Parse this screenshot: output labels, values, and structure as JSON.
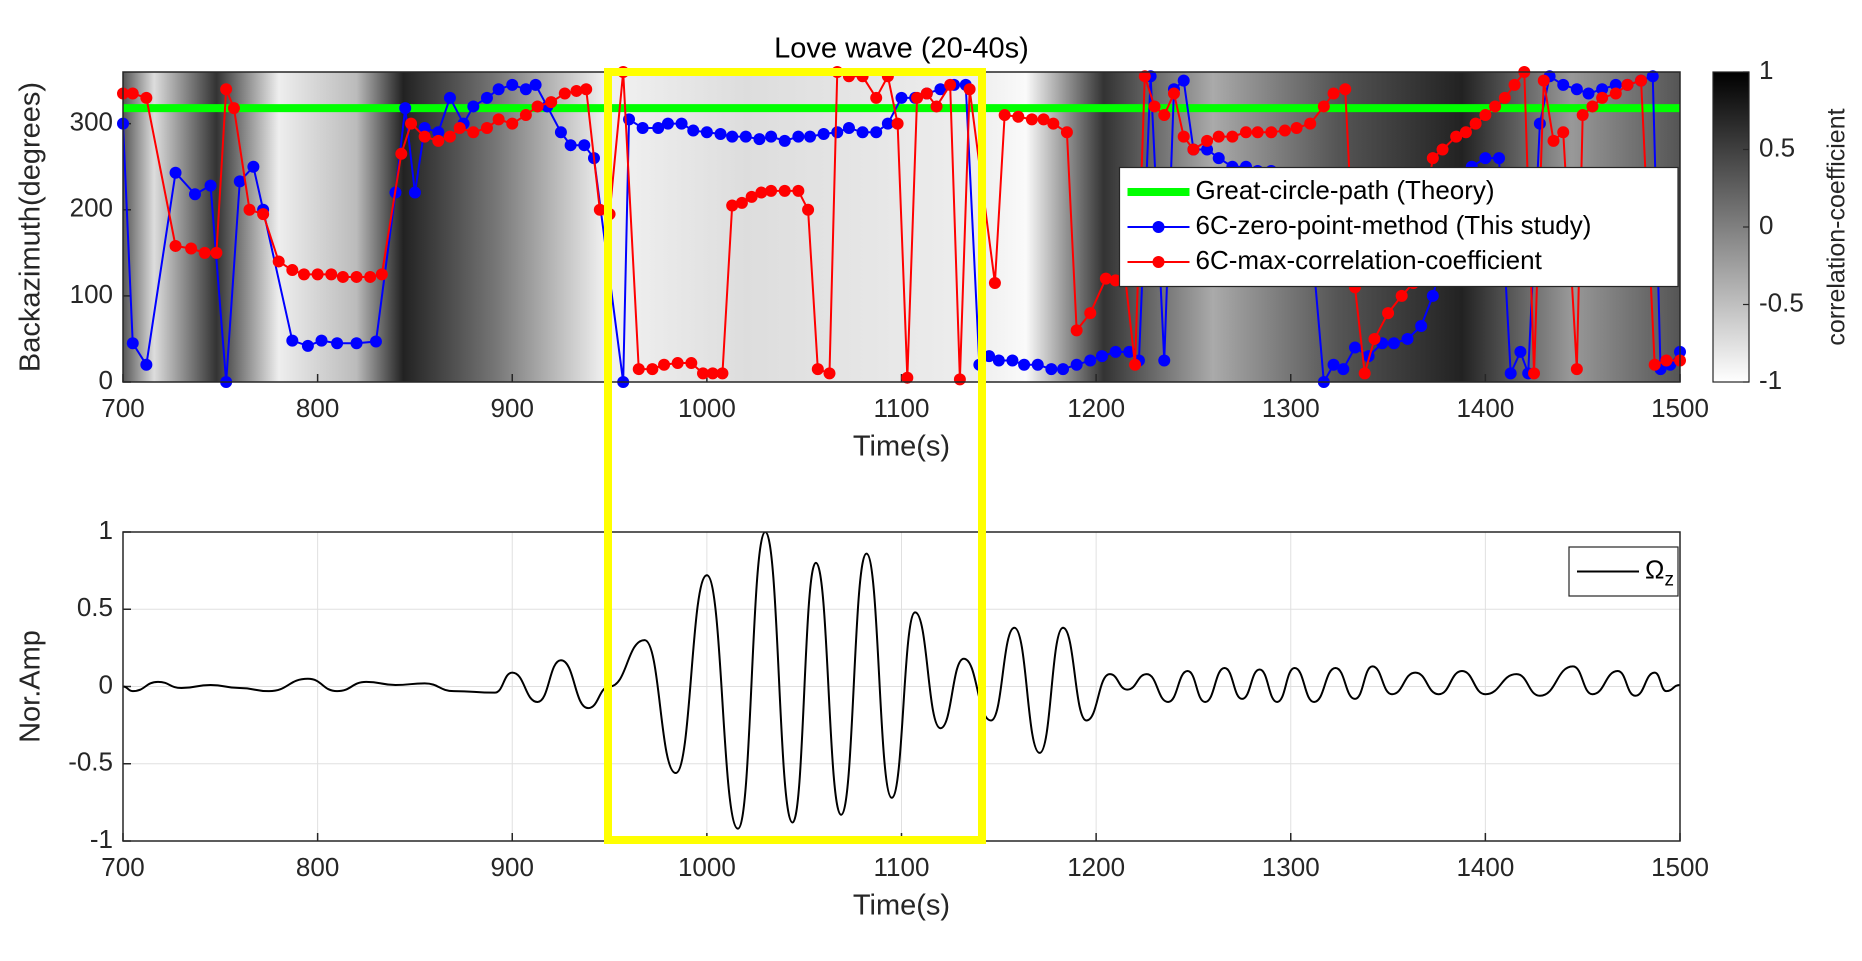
{
  "chart_data": [
    {
      "type": "line",
      "title": "Love wave (20-40s)",
      "x_label": "Time(s)",
      "y_label": "Backazimuth(degrees)",
      "xlim": [
        700,
        1500
      ],
      "xticks": [
        700,
        800,
        900,
        1000,
        1100,
        1200,
        1300,
        1400,
        1500
      ],
      "ylim": [
        0,
        360
      ],
      "yticks": [
        0,
        100,
        200,
        300
      ],
      "grid": false,
      "legend": "east",
      "markers": true,
      "colorbar": {
        "label": "correlation-coefficient",
        "lim": [
          -1,
          1
        ],
        "ticks": [
          -1,
          -0.5,
          0,
          0.5,
          1
        ]
      },
      "series": [
        {
          "name": "Great-circle-path (Theory)",
          "color": "#00ff00",
          "markers": false,
          "width": 8,
          "x": [
            700,
            1500
          ],
          "values": [
            318,
            318
          ]
        },
        {
          "name": "6C-zero-point-method (This study)",
          "color": "#0000ff",
          "width": 2,
          "x": [
            700,
            705,
            712,
            727,
            737,
            745,
            753,
            760,
            767,
            772,
            787,
            795,
            802,
            810,
            820,
            830,
            840,
            845,
            850,
            855,
            862,
            868,
            875,
            880,
            887,
            893,
            900,
            907,
            912,
            918,
            925,
            930,
            937,
            942,
            957,
            960,
            967,
            975,
            980,
            987,
            993,
            1000,
            1007,
            1013,
            1020,
            1027,
            1033,
            1040,
            1047,
            1053,
            1060,
            1067,
            1073,
            1080,
            1087,
            1093,
            1100,
            1107,
            1113,
            1120,
            1127,
            1133,
            1140,
            1145,
            1150,
            1157,
            1163,
            1170,
            1177,
            1183,
            1190,
            1197,
            1203,
            1210,
            1217,
            1222,
            1228,
            1235,
            1240,
            1245,
            1250,
            1257,
            1263,
            1270,
            1277,
            1283,
            1290,
            1297,
            1303,
            1308,
            1317,
            1322,
            1327,
            1333,
            1340,
            1347,
            1353,
            1360,
            1367,
            1373,
            1380,
            1387,
            1393,
            1400,
            1407,
            1413,
            1418,
            1422,
            1428,
            1433,
            1440,
            1447,
            1453,
            1460,
            1467,
            1473,
            1480,
            1486,
            1490,
            1495,
            1500
          ],
          "values": [
            300,
            45,
            20,
            243,
            218,
            228,
            0,
            233,
            250,
            200,
            48,
            42,
            48,
            45,
            45,
            47,
            220,
            318,
            220,
            295,
            290,
            330,
            300,
            320,
            330,
            340,
            345,
            340,
            345,
            320,
            290,
            275,
            275,
            260,
            0,
            305,
            295,
            295,
            300,
            300,
            292,
            290,
            288,
            285,
            285,
            282,
            285,
            280,
            285,
            285,
            288,
            290,
            295,
            290,
            290,
            300,
            330,
            330,
            335,
            340,
            345,
            345,
            20,
            30,
            25,
            25,
            20,
            20,
            15,
            15,
            20,
            25,
            30,
            35,
            35,
            25,
            355,
            25,
            340,
            350,
            270,
            270,
            260,
            250,
            250,
            245,
            245,
            240,
            235,
            235,
            0,
            20,
            15,
            40,
            30,
            45,
            45,
            50,
            65,
            100,
            160,
            240,
            250,
            260,
            260,
            10,
            35,
            10,
            300,
            355,
            345,
            340,
            335,
            340,
            345,
            345,
            350,
            355,
            15,
            20,
            35
          ]
        },
        {
          "name": "6C-max-correlation-coefficient",
          "color": "#ff0000",
          "width": 2,
          "x": [
            700,
            705,
            712,
            727,
            735,
            742,
            748,
            753,
            757,
            765,
            772,
            780,
            787,
            793,
            800,
            807,
            813,
            820,
            827,
            833,
            843,
            848,
            855,
            862,
            868,
            873,
            880,
            887,
            893,
            900,
            907,
            913,
            920,
            927,
            933,
            938,
            945,
            950,
            957,
            965,
            972,
            978,
            985,
            992,
            998,
            1003,
            1008,
            1013,
            1018,
            1023,
            1028,
            1033,
            1040,
            1047,
            1052,
            1057,
            1063,
            1067,
            1073,
            1080,
            1087,
            1093,
            1098,
            1103,
            1108,
            1113,
            1118,
            1125,
            1130,
            1135,
            1148,
            1153,
            1160,
            1167,
            1173,
            1178,
            1185,
            1190,
            1197,
            1205,
            1210,
            1215,
            1220,
            1225,
            1230,
            1235,
            1240,
            1245,
            1250,
            1257,
            1263,
            1270,
            1277,
            1283,
            1290,
            1297,
            1303,
            1310,
            1317,
            1322,
            1328,
            1333,
            1338,
            1343,
            1350,
            1357,
            1363,
            1373,
            1378,
            1385,
            1390,
            1395,
            1400,
            1405,
            1410,
            1415,
            1420,
            1425,
            1430,
            1435,
            1440,
            1447,
            1450,
            1455,
            1460,
            1467,
            1473,
            1480,
            1487,
            1493,
            1500
          ],
          "values": [
            335,
            335,
            330,
            158,
            155,
            150,
            150,
            340,
            318,
            200,
            195,
            140,
            130,
            125,
            125,
            125,
            122,
            122,
            122,
            125,
            265,
            300,
            285,
            280,
            285,
            295,
            290,
            295,
            305,
            300,
            310,
            320,
            325,
            335,
            338,
            340,
            200,
            195,
            360,
            15,
            15,
            20,
            22,
            22,
            10,
            10,
            10,
            205,
            208,
            215,
            220,
            222,
            222,
            222,
            200,
            15,
            10,
            360,
            355,
            355,
            330,
            355,
            300,
            5,
            330,
            335,
            320,
            345,
            3,
            340,
            115,
            310,
            308,
            305,
            305,
            300,
            290,
            60,
            80,
            120,
            118,
            120,
            20,
            355,
            320,
            310,
            335,
            285,
            270,
            280,
            285,
            285,
            290,
            290,
            290,
            292,
            295,
            300,
            320,
            335,
            340,
            110,
            10,
            50,
            80,
            100,
            115,
            260,
            270,
            285,
            290,
            300,
            310,
            320,
            330,
            345,
            360,
            10,
            350,
            280,
            290,
            15,
            310,
            320,
            330,
            335,
            345,
            350,
            20,
            25,
            25
          ]
        }
      ]
    },
    {
      "type": "line",
      "x_label": "Time(s)",
      "y_label": "Nor.Amp",
      "xlim": [
        700,
        1500
      ],
      "xticks": [
        700,
        800,
        900,
        1000,
        1100,
        1200,
        1300,
        1400,
        1500
      ],
      "ylim": [
        -1,
        1
      ],
      "yticks": [
        -1,
        -0.5,
        0,
        0.5,
        1
      ],
      "grid": true,
      "legend": "northeast",
      "smooth": true,
      "series": [
        {
          "name": "Ωz",
          "color": "#000000",
          "width": 2,
          "x": [
            700,
            705,
            718,
            730,
            745,
            760,
            775,
            795,
            810,
            825,
            840,
            855,
            870,
            891,
            900,
            913,
            925,
            939,
            950,
            968,
            984,
            1000,
            1016,
            1030,
            1044,
            1056,
            1069,
            1082,
            1095,
            1107,
            1120,
            1132,
            1146,
            1158,
            1171,
            1183,
            1195,
            1207,
            1216,
            1226,
            1237,
            1247,
            1256,
            1266,
            1275,
            1284,
            1293,
            1302,
            1312,
            1323,
            1333,
            1342,
            1352,
            1364,
            1376,
            1388,
            1400,
            1416,
            1428,
            1445,
            1455,
            1468,
            1477,
            1487,
            1493,
            1500
          ],
          "values": [
            0,
            -0.03,
            0.03,
            -0.01,
            0.01,
            -0.01,
            -0.03,
            0.05,
            -0.03,
            0.03,
            0.01,
            0.02,
            -0.03,
            -0.04,
            0.09,
            -0.1,
            0.17,
            -0.14,
            0,
            0.3,
            -0.56,
            0.72,
            -0.92,
            1,
            -0.88,
            0.8,
            -0.83,
            0.86,
            -0.72,
            0.48,
            -0.27,
            0.18,
            -0.22,
            0.38,
            -0.43,
            0.38,
            -0.22,
            0.08,
            -0.02,
            0.08,
            -0.1,
            0.1,
            -0.1,
            0.12,
            -0.08,
            0.11,
            -0.1,
            0.12,
            -0.1,
            0.12,
            -0.08,
            0.13,
            -0.05,
            0.09,
            -0.05,
            0.1,
            -0.05,
            0.08,
            -0.06,
            0.13,
            -0.05,
            0.1,
            -0.06,
            0.09,
            -0.03,
            0.01
          ]
        }
      ]
    }
  ]
}
